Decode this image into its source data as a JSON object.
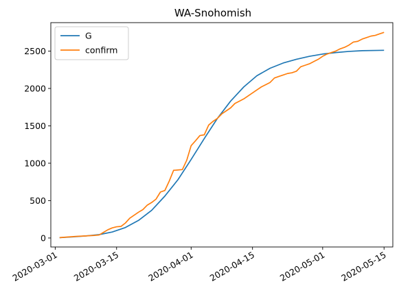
{
  "chart_data": {
    "type": "line",
    "title": "WA-Snohomish",
    "xlabel": "",
    "ylabel": "",
    "x_range": [
      "2020-02-29",
      "2020-05-17"
    ],
    "ylim": [
      -120,
      2880
    ],
    "grid": false,
    "legend_position": "top-left",
    "x_ticks": [
      "2020-03-01",
      "2020-03-15",
      "2020-04-01",
      "2020-04-15",
      "2020-05-01",
      "2020-05-15"
    ],
    "y_ticks": [
      0,
      500,
      1000,
      1500,
      2000,
      2500
    ],
    "y_tick_labels": [
      "0",
      "500",
      "1000",
      "1500",
      "2000",
      "2500"
    ],
    "series": [
      {
        "name": "G",
        "color": "#1f77b4",
        "points": [
          [
            "2020-03-02",
            5
          ],
          [
            "2020-03-05",
            15
          ],
          [
            "2020-03-08",
            28
          ],
          [
            "2020-03-11",
            45
          ],
          [
            "2020-03-14",
            80
          ],
          [
            "2020-03-17",
            140
          ],
          [
            "2020-03-20",
            235
          ],
          [
            "2020-03-23",
            370
          ],
          [
            "2020-03-26",
            560
          ],
          [
            "2020-03-29",
            780
          ],
          [
            "2020-04-01",
            1050
          ],
          [
            "2020-04-04",
            1330
          ],
          [
            "2020-04-07",
            1600
          ],
          [
            "2020-04-10",
            1830
          ],
          [
            "2020-04-13",
            2020
          ],
          [
            "2020-04-16",
            2170
          ],
          [
            "2020-04-19",
            2270
          ],
          [
            "2020-04-22",
            2340
          ],
          [
            "2020-04-25",
            2390
          ],
          [
            "2020-04-28",
            2430
          ],
          [
            "2020-05-01",
            2460
          ],
          [
            "2020-05-04",
            2480
          ],
          [
            "2020-05-07",
            2495
          ],
          [
            "2020-05-10",
            2505
          ],
          [
            "2020-05-15",
            2510
          ]
        ]
      },
      {
        "name": "confirm",
        "color": "#ff7f0e",
        "points": [
          [
            "2020-03-02",
            5
          ],
          [
            "2020-03-04",
            14
          ],
          [
            "2020-03-06",
            22
          ],
          [
            "2020-03-08",
            28
          ],
          [
            "2020-03-10",
            35
          ],
          [
            "2020-03-11",
            40
          ],
          [
            "2020-03-12",
            75
          ],
          [
            "2020-03-13",
            110
          ],
          [
            "2020-03-14",
            135
          ],
          [
            "2020-03-15",
            150
          ],
          [
            "2020-03-16",
            155
          ],
          [
            "2020-03-17",
            200
          ],
          [
            "2020-03-18",
            265
          ],
          [
            "2020-03-19",
            305
          ],
          [
            "2020-03-20",
            345
          ],
          [
            "2020-03-21",
            380
          ],
          [
            "2020-03-22",
            440
          ],
          [
            "2020-03-23",
            475
          ],
          [
            "2020-03-24",
            520
          ],
          [
            "2020-03-25",
            615
          ],
          [
            "2020-03-26",
            635
          ],
          [
            "2020-03-27",
            760
          ],
          [
            "2020-03-28",
            905
          ],
          [
            "2020-03-29",
            910
          ],
          [
            "2020-03-30",
            915
          ],
          [
            "2020-03-31",
            1040
          ],
          [
            "2020-04-01",
            1235
          ],
          [
            "2020-04-02",
            1300
          ],
          [
            "2020-04-03",
            1370
          ],
          [
            "2020-04-04",
            1380
          ],
          [
            "2020-04-05",
            1510
          ],
          [
            "2020-04-06",
            1560
          ],
          [
            "2020-04-07",
            1600
          ],
          [
            "2020-04-08",
            1660
          ],
          [
            "2020-04-09",
            1700
          ],
          [
            "2020-04-10",
            1740
          ],
          [
            "2020-04-11",
            1800
          ],
          [
            "2020-04-12",
            1830
          ],
          [
            "2020-04-13",
            1860
          ],
          [
            "2020-04-14",
            1900
          ],
          [
            "2020-04-15",
            1940
          ],
          [
            "2020-04-16",
            1980
          ],
          [
            "2020-04-17",
            2020
          ],
          [
            "2020-04-18",
            2050
          ],
          [
            "2020-04-19",
            2080
          ],
          [
            "2020-04-20",
            2140
          ],
          [
            "2020-04-21",
            2160
          ],
          [
            "2020-04-22",
            2180
          ],
          [
            "2020-04-23",
            2200
          ],
          [
            "2020-04-24",
            2210
          ],
          [
            "2020-04-25",
            2230
          ],
          [
            "2020-04-26",
            2290
          ],
          [
            "2020-04-27",
            2310
          ],
          [
            "2020-04-28",
            2330
          ],
          [
            "2020-04-29",
            2360
          ],
          [
            "2020-04-30",
            2390
          ],
          [
            "2020-05-01",
            2430
          ],
          [
            "2020-05-02",
            2460
          ],
          [
            "2020-05-03",
            2480
          ],
          [
            "2020-05-04",
            2500
          ],
          [
            "2020-05-05",
            2530
          ],
          [
            "2020-05-06",
            2550
          ],
          [
            "2020-05-07",
            2580
          ],
          [
            "2020-05-08",
            2620
          ],
          [
            "2020-05-09",
            2630
          ],
          [
            "2020-05-10",
            2660
          ],
          [
            "2020-05-11",
            2680
          ],
          [
            "2020-05-12",
            2700
          ],
          [
            "2020-05-13",
            2710
          ],
          [
            "2020-05-14",
            2730
          ],
          [
            "2020-05-15",
            2750
          ]
        ]
      }
    ]
  }
}
